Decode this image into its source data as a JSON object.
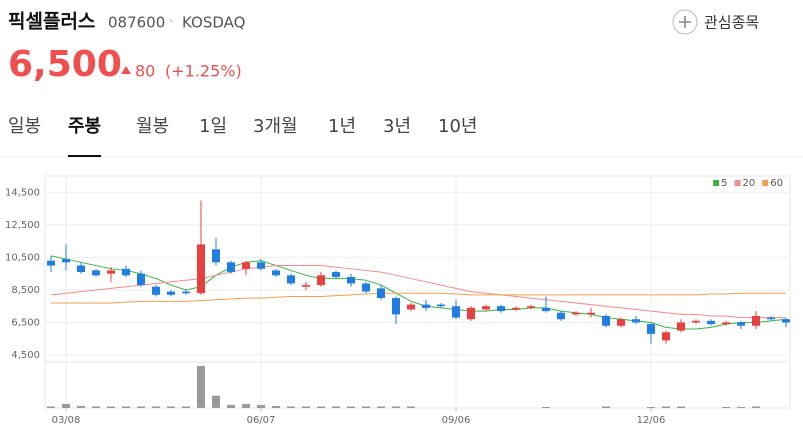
{
  "header": {
    "name": "픽셀플러스",
    "code": "087600",
    "separator": "·",
    "market": "KOSDAQ",
    "watch": "관심종목",
    "price": "6,500",
    "change": 80,
    "change_pct": "(+1.25%)"
  },
  "tabs": [
    "일봉",
    "주봉",
    "월봉",
    "1일",
    "3개월",
    "1년",
    "3년",
    "10년"
  ],
  "active_tab": 1,
  "chart_data": {
    "type": "candlestick",
    "categories": [
      null,
      "03/08",
      null,
      null,
      null,
      null,
      null,
      null,
      null,
      null,
      null,
      null,
      null,
      null,
      "06/07",
      null,
      null,
      null,
      null,
      null,
      null,
      null,
      null,
      null,
      null,
      null,
      null,
      "09/06",
      null,
      null,
      null,
      null,
      null,
      null,
      null,
      null,
      null,
      null,
      null,
      null,
      "12/06",
      null,
      null,
      null,
      null,
      null,
      null,
      null,
      null,
      null
    ],
    "open": [
      10300,
      10400,
      10000,
      9700,
      9500,
      9800,
      9500,
      8700,
      8400,
      8400,
      8300,
      11000,
      10200,
      9800,
      10200,
      9700,
      9400,
      8700,
      8800,
      9600,
      9300,
      8900,
      8600,
      8000,
      7300,
      7600,
      7600,
      7500,
      6700,
      7300,
      7500,
      7300,
      7400,
      7400,
      7100,
      7000,
      7000,
      6900,
      6300,
      6700,
      6400,
      5400,
      6000,
      6500,
      6600,
      6400,
      6500,
      6300,
      6800,
      6700
    ],
    "high": [
      10600,
      11300,
      10200,
      9800,
      9900,
      10000,
      9700,
      8800,
      8500,
      8500,
      14000,
      11700,
      10300,
      10300,
      10400,
      9800,
      9500,
      9000,
      9600,
      9700,
      9500,
      9000,
      8800,
      8100,
      7700,
      7900,
      7700,
      7900,
      7500,
      7600,
      7600,
      7500,
      7600,
      8100,
      7200,
      7200,
      7400,
      7000,
      6800,
      6900,
      6500,
      6000,
      6700,
      6700,
      6700,
      6600,
      6600,
      7200,
      6900,
      6800
    ],
    "low": [
      9600,
      9700,
      9500,
      9300,
      9000,
      9300,
      8700,
      8100,
      8100,
      8200,
      8200,
      10000,
      9500,
      9400,
      9700,
      9300,
      8800,
      8500,
      8700,
      9200,
      8700,
      8300,
      7900,
      6400,
      7200,
      7200,
      7400,
      6700,
      6600,
      7200,
      7100,
      7200,
      7300,
      7100,
      6600,
      6900,
      6800,
      6200,
      6200,
      6400,
      5200,
      5200,
      5900,
      6400,
      6300,
      6300,
      6100,
      6100,
      6600,
      6200
    ],
    "close": [
      10000,
      10200,
      9600,
      9400,
      9700,
      9400,
      8800,
      8200,
      8200,
      8300,
      11300,
      10200,
      9600,
      10200,
      9800,
      9400,
      8900,
      8800,
      9400,
      9300,
      8900,
      8400,
      8000,
      7000,
      7600,
      7400,
      7500,
      6800,
      7400,
      7500,
      7200,
      7400,
      7500,
      7200,
      6700,
      7100,
      7100,
      6300,
      6700,
      6500,
      5800,
      5900,
      6500,
      6600,
      6400,
      6500,
      6300,
      6900,
      6700,
      6500
    ],
    "up_color": "#e84040",
    "down_color": "#1f7ee0",
    "series": [
      {
        "name": "5",
        "color": "#3cb043",
        "values": [
          10600,
          10400,
          10200,
          10000,
          9800,
          9700,
          9500,
          9200,
          8800,
          8500,
          8700,
          9400,
          9900,
          10200,
          10300,
          10000,
          9700,
          9400,
          9200,
          9200,
          9200,
          9100,
          8800,
          8300,
          7800,
          7500,
          7400,
          7300,
          7200,
          7200,
          7300,
          7300,
          7400,
          7400,
          7200,
          7100,
          7000,
          6800,
          6700,
          6600,
          6500,
          6200,
          6100,
          6100,
          6200,
          6400,
          6500,
          6500,
          6600,
          6700
        ]
      },
      {
        "name": "20",
        "color": "#f28b8b",
        "values": [
          8200,
          8300,
          8400,
          8500,
          8600,
          8700,
          8800,
          8900,
          9000,
          9100,
          9200,
          9400,
          9600,
          9800,
          9900,
          10000,
          10000,
          10000,
          10000,
          9900,
          9800,
          9700,
          9600,
          9400,
          9200,
          9000,
          8800,
          8600,
          8400,
          8300,
          8200,
          8100,
          8000,
          7900,
          7800,
          7700,
          7600,
          7500,
          7400,
          7300,
          7200,
          7100,
          7000,
          7000,
          6900,
          6900,
          6800,
          6800,
          6800,
          6800
        ]
      },
      {
        "name": "60",
        "color": "#f0a050",
        "values": [
          7700,
          7700,
          7700,
          7700,
          7700,
          7750,
          7800,
          7800,
          7800,
          7800,
          7850,
          7900,
          7950,
          8000,
          8000,
          8050,
          8100,
          8100,
          8100,
          8150,
          8200,
          8250,
          8300,
          8300,
          8300,
          8300,
          8300,
          8250,
          8200,
          8200,
          8200,
          8200,
          8200,
          8200,
          8200,
          8200,
          8200,
          8200,
          8200,
          8200,
          8200,
          8200,
          8200,
          8200,
          8250,
          8250,
          8300,
          8300,
          8300,
          8300
        ]
      }
    ],
    "volume": {
      "color": "#9a9a9a",
      "values": [
        150,
        400,
        200,
        150,
        150,
        150,
        150,
        150,
        150,
        150,
        4100,
        1200,
        300,
        400,
        300,
        200,
        150,
        150,
        150,
        150,
        150,
        150,
        150,
        150,
        150,
        0,
        0,
        0,
        0,
        0,
        0,
        0,
        0,
        100,
        0,
        0,
        0,
        150,
        0,
        0,
        100,
        150,
        150,
        0,
        0,
        100,
        100,
        150,
        0,
        0
      ]
    },
    "ylim": [
      4500,
      15200
    ],
    "yticks": [
      {
        "value": 4500,
        "label": "4,500"
      },
      {
        "value": 6500,
        "label": "6,500"
      },
      {
        "value": 8500,
        "label": "8,500"
      },
      {
        "value": 10500,
        "label": "10,500"
      },
      {
        "value": 12500,
        "label": "12,500"
      },
      {
        "value": 14500,
        "label": "14,500"
      }
    ],
    "grid": true,
    "legend": "top-right"
  }
}
